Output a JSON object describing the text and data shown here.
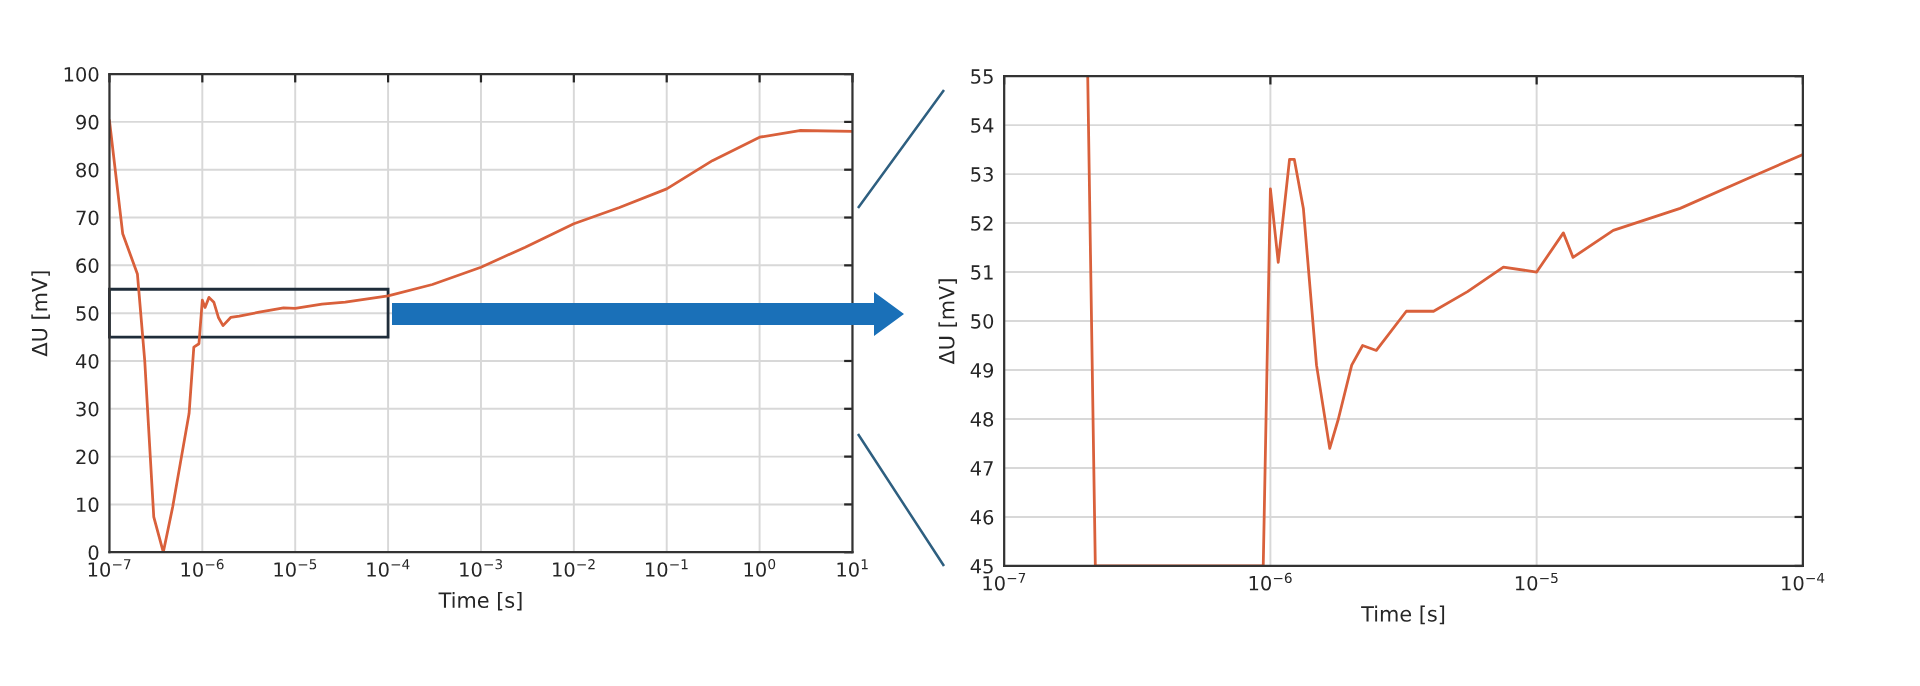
{
  "chart_data": [
    {
      "type": "line",
      "xlabel": "Time [s]",
      "ylabel": "ΔU [mV]",
      "log": "x",
      "grid": true,
      "xlim": [
        1e-07,
        10
      ],
      "ylim": [
        0,
        100
      ],
      "xticks": [
        {
          "value": 1e-07,
          "label": "10$^{−7}$"
        },
        {
          "value": 1e-06,
          "label": "10$^{−6}$"
        },
        {
          "value": 1e-05,
          "label": "10$^{−5}$"
        },
        {
          "value": 0.0001,
          "label": "10$^{−4}$"
        },
        {
          "value": 0.001,
          "label": "10$^{−3}$"
        },
        {
          "value": 0.01,
          "label": "10$^{−2}$"
        },
        {
          "value": 0.1,
          "label": "10$^{−1}$"
        },
        {
          "value": 1,
          "label": "10$^{0}$"
        },
        {
          "value": 10,
          "label": "10$^{1}$"
        }
      ],
      "yticks": [
        0,
        10,
        20,
        30,
        40,
        50,
        60,
        70,
        80,
        90,
        100
      ],
      "series": [
        {
          "color": "#d9603b",
          "x": [
            1e-07,
            1.39e-07,
            2e-07,
            2.4e-07,
            3e-07,
            3.8e-07,
            4.8e-07,
            5.7e-07,
            7.2e-07,
            8.1e-07,
            9.2e-07,
            1e-06,
            1.07e-06,
            1.18e-06,
            1.33e-06,
            1.49e-06,
            1.67e-06,
            2.02e-06,
            2.5e-06,
            4.1e-06,
            7.5e-06,
            1e-05,
            1.94e-05,
            3.46e-05,
            0.0001,
            0.0003,
            0.001,
            0.003,
            0.01,
            0.031,
            0.1,
            0.31,
            1,
            2.7,
            10
          ],
          "values": [
            90.3,
            66.6,
            58.2,
            40,
            7.4,
            0,
            9.5,
            17.8,
            29,
            42.9,
            43.6,
            52.7,
            51.2,
            53.3,
            52.3,
            49.1,
            47.4,
            49.1,
            49.4,
            50.2,
            51.1,
            51.0,
            51.9,
            52.3,
            53.6,
            56,
            59.6,
            63.8,
            68.7,
            72.1,
            76,
            81.9,
            86.8,
            88.2,
            88
          ]
        }
      ]
    },
    {
      "type": "line",
      "xlabel": "Time [s]",
      "ylabel": "ΔU [mV]",
      "log": "x",
      "grid": true,
      "xlim": [
        1e-07,
        0.0001
      ],
      "ylim": [
        45,
        55
      ],
      "xticks": [
        {
          "value": 1e-07,
          "label": "10$^{−7}$"
        },
        {
          "value": 1e-06,
          "label": "10$^{−6}$"
        },
        {
          "value": 1e-05,
          "label": "10$^{−5}$"
        },
        {
          "value": 0.0001,
          "label": "10$^{−4}$"
        }
      ],
      "yticks": [
        45,
        46,
        47,
        48,
        49,
        50,
        51,
        52,
        53,
        54,
        55
      ],
      "series": [
        {
          "color": "#d9603b",
          "x": [
            2.06e-07,
            2.2e-07,
            9.4e-07,
            1e-06,
            1.07e-06,
            1.18e-06,
            1.23e-06,
            1.33e-06,
            1.49e-06,
            1.67e-06,
            1.8e-06,
            2.02e-06,
            2.22e-06,
            2.5e-06,
            3.24e-06,
            4.1e-06,
            5.5e-06,
            7.5e-06,
            1e-05,
            1.26e-05,
            1.37e-05,
            1.94e-05,
            3.46e-05,
            6.15e-05,
            0.0001
          ],
          "values": [
            55,
            45,
            45,
            52.7,
            51.2,
            53.3,
            53.3,
            52.3,
            49.1,
            47.4,
            48.0,
            49.1,
            49.5,
            49.4,
            50.2,
            50.2,
            50.6,
            51.1,
            51.0,
            51.8,
            51.3,
            51.85,
            52.3,
            52.9,
            53.4
          ]
        }
      ]
    }
  ]
}
